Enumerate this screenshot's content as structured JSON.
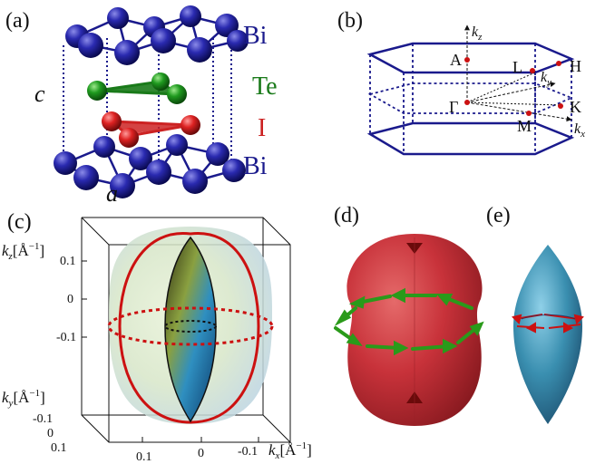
{
  "panels": {
    "a": {
      "label": "(a)",
      "lattice": {
        "c": "c",
        "a": "a"
      },
      "layers": [
        {
          "name": "Bi",
          "color": "#1a1a8c"
        },
        {
          "name": "Te",
          "color": "#1a7a1a"
        },
        {
          "name": "I",
          "color": "#cc2222"
        },
        {
          "name": "Bi",
          "color": "#1a1a8c"
        }
      ]
    },
    "b": {
      "label": "(b)",
      "points": {
        "A": "A",
        "L": "L",
        "H": "H",
        "Gamma": "Γ",
        "K": "K",
        "M": "M"
      },
      "axes": {
        "kz": "k",
        "kz_sub": "z",
        "ky": "k",
        "ky_sub": "y",
        "kx": "k",
        "kx_sub": "x"
      }
    },
    "c": {
      "label": "(c)",
      "kz_label": "k",
      "kz_sub": "z",
      "kz_unit": "[Å",
      "kz_exp": "−1",
      "kz_close": "]",
      "kz_ticks": [
        "0.1",
        "0",
        "-0.1"
      ],
      "ky_label": "k",
      "ky_sub": "y",
      "ky_unit": "[Å",
      "ky_exp": "−1",
      "ky_close": "]",
      "ky_ticks": [
        "-0.1",
        "0",
        "0.1"
      ],
      "kx_label": "k",
      "kx_sub": "x",
      "kx_unit": "[Å",
      "kx_exp": "−1",
      "kx_close": "]",
      "kx_ticks": [
        "0.1",
        "0",
        "-0.1"
      ]
    },
    "d": {
      "label": "(d)"
    },
    "e": {
      "label": "(e)"
    }
  },
  "colors": {
    "bi": "#1a1a8c",
    "te": "#1a7a1a",
    "iodine": "#cc2222",
    "bz": "#1a1a8c",
    "outer_surface": "#c8323a",
    "inner_surface": "#3a8fb0",
    "arrow_green": "#2a9a1a"
  }
}
